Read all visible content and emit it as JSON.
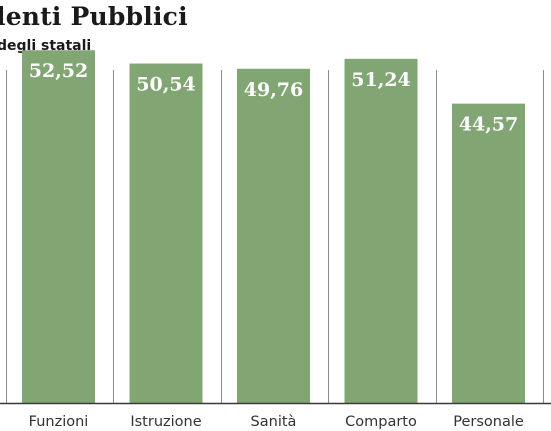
{
  "header": {
    "title": "lenti Pubblici",
    "subtitle": "degli statali"
  },
  "chart_data": {
    "type": "bar",
    "title": "lenti Pubblici",
    "subtitle": "degli statali",
    "categories": [
      "Funzioni",
      "Istruzione",
      "Sanità",
      "Comparto",
      "Personale"
    ],
    "values": [
      52.52,
      50.54,
      49.76,
      51.24,
      44.57
    ],
    "value_labels": [
      "52,52",
      "50,54",
      "49,76",
      "51,24",
      "44,57"
    ],
    "xlabel": "",
    "ylabel": "",
    "ylim": [
      0,
      60
    ],
    "grid": false,
    "legend": "none",
    "colors": {
      "bar": "#82a574",
      "value_text": "#ffffff",
      "divider": "#8c8c8c"
    }
  }
}
